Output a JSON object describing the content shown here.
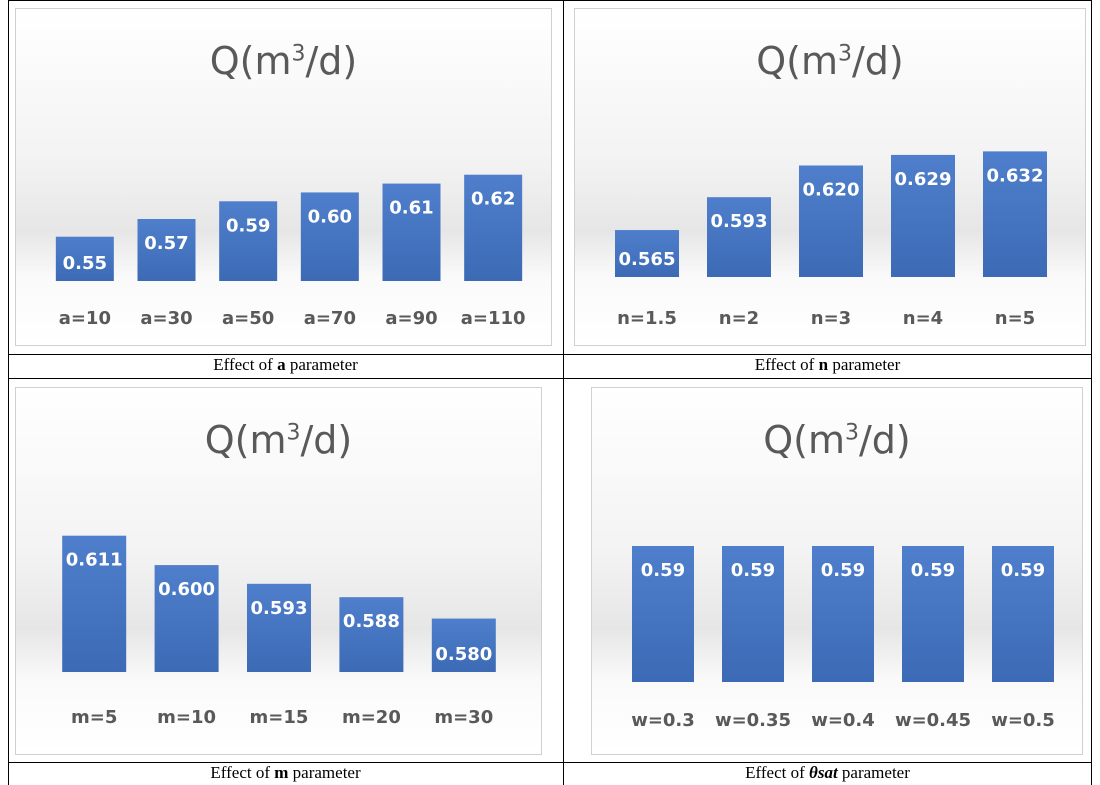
{
  "charts": [
    {
      "caption_prefix": "Effect of ",
      "caption_param": "a",
      "caption_suffix": " parameter"
    },
    {
      "caption_prefix": "Effect of ",
      "caption_param": "n",
      "caption_suffix": " parameter"
    },
    {
      "caption_prefix": "Effect of ",
      "caption_param": "m",
      "caption_suffix": " parameter"
    },
    {
      "caption_prefix": "Effect of ",
      "caption_param": "θsat",
      "caption_suffix": " parameter"
    }
  ],
  "chart_data": [
    {
      "type": "bar",
      "title": "Q(m³/d)",
      "title_base": "Q(m",
      "title_sup": "3",
      "title_end": "/d)",
      "categories": [
        "a=10",
        "a=30",
        "a=50",
        "a=70",
        "a=90",
        "a=110"
      ],
      "values": [
        0.55,
        0.57,
        0.59,
        0.6,
        0.61,
        0.62
      ],
      "value_labels": [
        "0.55",
        "0.57",
        "0.59",
        "0.60",
        "0.61",
        "0.62"
      ],
      "ylim": [
        0.5,
        0.64
      ],
      "grid": false,
      "legend": false,
      "bar_color": "#4472c4"
    },
    {
      "type": "bar",
      "title": "Q(m³/d)",
      "title_base": "Q(m",
      "title_sup": "3",
      "title_end": "/d)",
      "categories": [
        "n=1.5",
        "n=2",
        "n=3",
        "n=4",
        "n=5"
      ],
      "values": [
        0.565,
        0.593,
        0.62,
        0.629,
        0.632
      ],
      "value_labels": [
        "0.565",
        "0.593",
        "0.620",
        "0.629",
        "0.632"
      ],
      "ylim": [
        0.525,
        0.64
      ],
      "grid": false,
      "legend": false,
      "bar_color": "#4472c4"
    },
    {
      "type": "bar",
      "title": "Q(m³/d)",
      "title_base": "Q(m",
      "title_sup": "3",
      "title_end": "/d)",
      "categories": [
        "m=5",
        "m=10",
        "m=15",
        "m=20",
        "m=30"
      ],
      "values": [
        0.611,
        0.6,
        0.593,
        0.588,
        0.58
      ],
      "value_labels": [
        "0.611",
        "0.600",
        "0.593",
        "0.588",
        "0.580"
      ],
      "ylim": [
        0.56,
        0.615
      ],
      "grid": false,
      "legend": false,
      "bar_color": "#4472c4"
    },
    {
      "type": "bar",
      "title": "Q(m³/d)",
      "title_base": "Q(m",
      "title_sup": "3",
      "title_end": "/d)",
      "categories": [
        "w=0.3",
        "w=0.35",
        "w=0.4",
        "w=0.45",
        "w=0.5"
      ],
      "values": [
        0.59,
        0.59,
        0.59,
        0.59,
        0.59
      ],
      "value_labels": [
        "0.59",
        "0.59",
        "0.59",
        "0.59",
        "0.59"
      ],
      "ylim": [
        0,
        0.59
      ],
      "grid": false,
      "legend": false,
      "bar_color": "#4472c4"
    }
  ]
}
